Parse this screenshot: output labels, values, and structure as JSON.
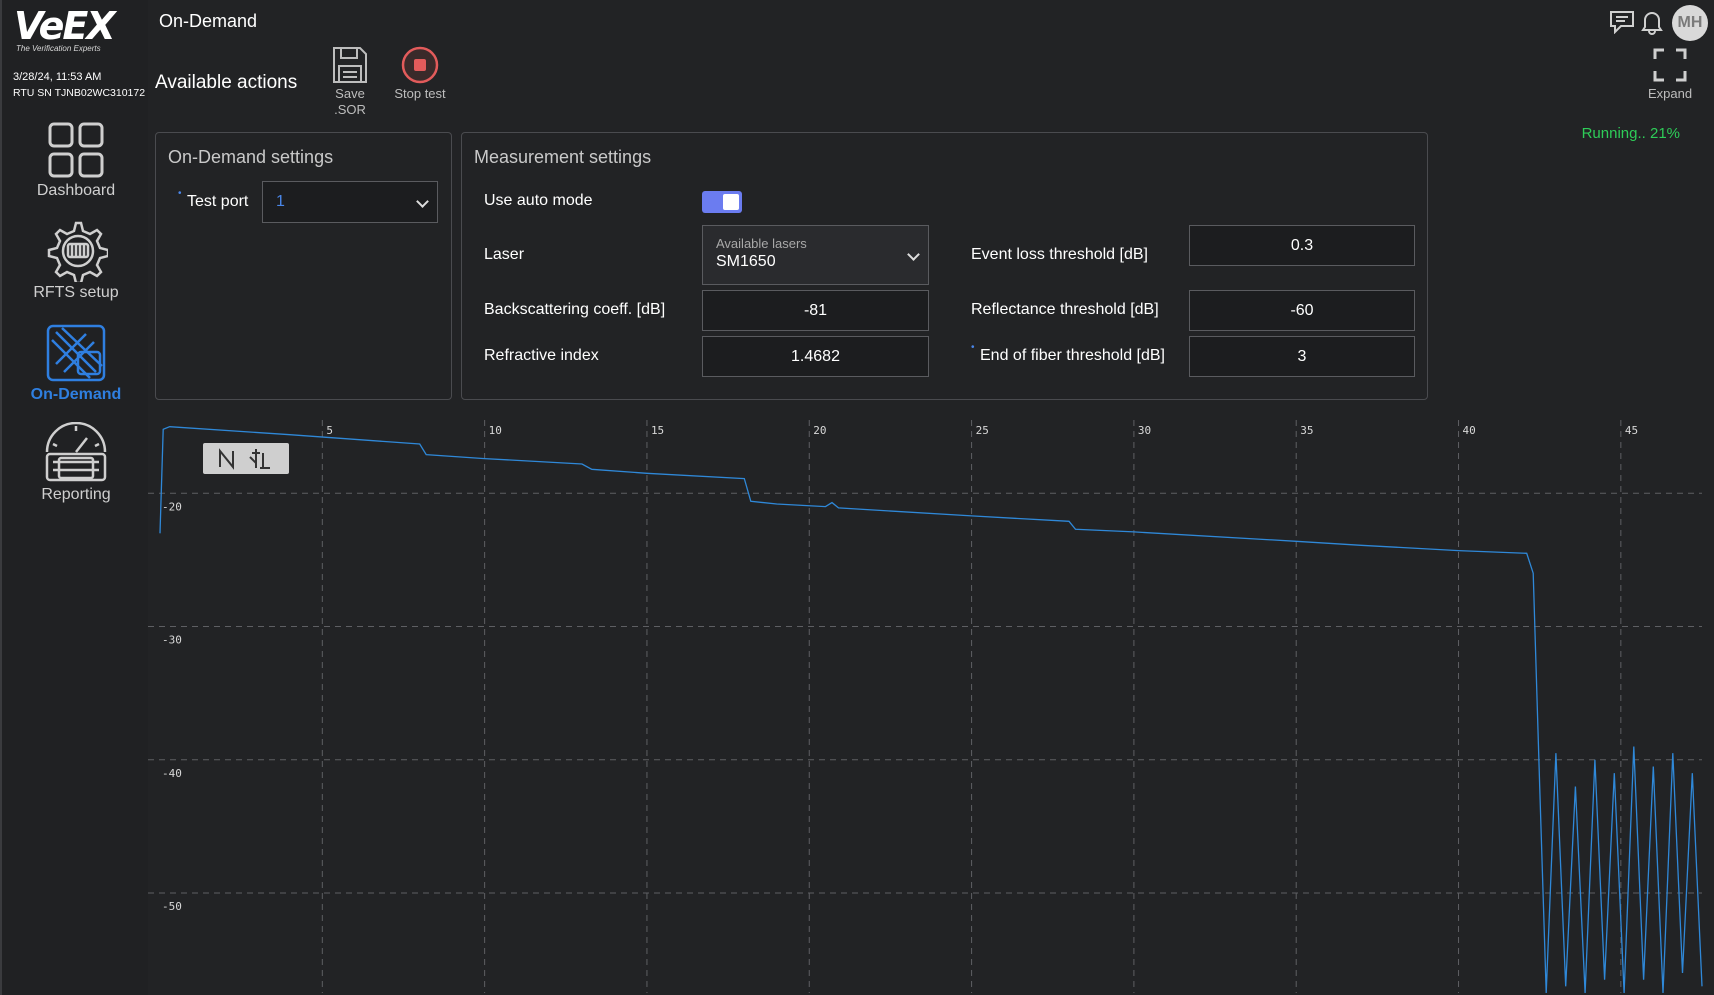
{
  "app": {
    "logo_text": "VeEX",
    "logo_tagline": "The Verification Experts",
    "datetime": "3/28/24, 11:53 AM",
    "rtu_sn": "RTU SN TJNB02WC310172",
    "page_title": "On-Demand",
    "user_initials": "MH"
  },
  "sidebar": {
    "items": [
      {
        "label": "Dashboard",
        "icon": "dashboard-grid-icon"
      },
      {
        "label": "RFTS setup",
        "icon": "gear-icon"
      },
      {
        "label": "On-Demand",
        "icon": "on-demand-fiber-icon"
      },
      {
        "label": "Reporting",
        "icon": "gauge-report-icon"
      }
    ],
    "active": "On-Demand"
  },
  "actions": {
    "title": "Available actions",
    "save_label_1": "Save",
    "save_label_2": ".SOR",
    "stop_label": "Stop test",
    "expand_label": "Expand"
  },
  "status": {
    "text": "Running.. 21%",
    "color": "#2ecc58"
  },
  "on_demand_settings": {
    "title": "On-Demand settings",
    "test_port_label": "Test port",
    "test_port_value": "1"
  },
  "measurement_settings": {
    "title": "Measurement settings",
    "auto_mode_label": "Use auto mode",
    "auto_mode_on": true,
    "laser_label": "Laser",
    "laser_caption": "Available lasers",
    "laser_value": "SM1650",
    "backscattering_label": "Backscattering coeff. [dB]",
    "backscattering_value": "-81",
    "refractive_label": "Refractive index",
    "refractive_value": "1.4682",
    "event_loss_label": "Event loss threshold [dB]",
    "event_loss_value": "0.3",
    "reflectance_label": "Reflectance threshold [dB]",
    "reflectance_value": "-60",
    "eof_label": "End of fiber threshold [dB]",
    "eof_value": "3"
  },
  "chart_data": {
    "type": "line",
    "xlim": [
      0,
      47.5
    ],
    "ylim": [
      -57.5,
      -14.5
    ],
    "x_ticks": [
      5,
      10,
      15,
      20,
      25,
      30,
      35,
      40,
      45
    ],
    "y_ticks": [
      -20,
      -30,
      -40,
      -50
    ],
    "grid": true,
    "line_color": "#2f88d8",
    "series": [
      {
        "values": [
          [
            0.0,
            -23
          ],
          [
            0.1,
            -15.2
          ],
          [
            0.3,
            -15.0
          ],
          [
            4.0,
            -15.6
          ],
          [
            8.0,
            -16.3
          ],
          [
            8.2,
            -17.1
          ],
          [
            10.0,
            -17.4
          ],
          [
            13.0,
            -17.8
          ],
          [
            13.3,
            -18.2
          ],
          [
            15.0,
            -18.5
          ],
          [
            18.0,
            -18.9
          ],
          [
            18.2,
            -20.6
          ],
          [
            19.0,
            -20.8
          ],
          [
            20.5,
            -21.0
          ],
          [
            20.7,
            -20.7
          ],
          [
            20.9,
            -21.1
          ],
          [
            25.0,
            -21.7
          ],
          [
            28.0,
            -22.1
          ],
          [
            28.2,
            -22.7
          ],
          [
            30.0,
            -22.9
          ],
          [
            35.0,
            -23.6
          ],
          [
            37.0,
            -23.9
          ],
          [
            40.0,
            -24.3
          ],
          [
            42.1,
            -24.5
          ],
          [
            42.3,
            -26.0
          ],
          [
            42.5,
            -42.0
          ],
          [
            42.7,
            -57.5
          ],
          [
            43.0,
            -39.5
          ],
          [
            43.3,
            -57.0
          ],
          [
            43.6,
            -42.0
          ],
          [
            43.9,
            -57.5
          ],
          [
            44.2,
            -40.0
          ],
          [
            44.5,
            -56.5
          ],
          [
            44.8,
            -41.0
          ],
          [
            45.1,
            -57.5
          ],
          [
            45.4,
            -39.0
          ],
          [
            45.7,
            -56.5
          ],
          [
            46.0,
            -40.5
          ],
          [
            46.3,
            -57.5
          ],
          [
            46.6,
            -39.5
          ],
          [
            46.9,
            -56.0
          ],
          [
            47.2,
            -41.0
          ],
          [
            47.5,
            -57.0
          ]
        ]
      }
    ]
  }
}
